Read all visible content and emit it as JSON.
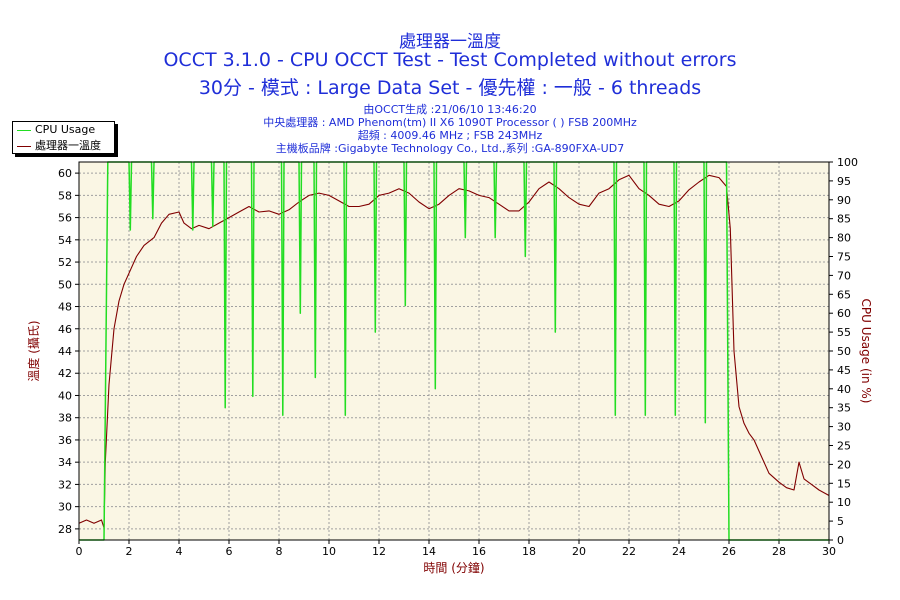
{
  "chart_title": "處理器一溫度",
  "test_line": "OCCT 3.1.0 - CPU OCCT Test - Test Completed without errors",
  "mode_line": "30分 - 模式 : Large Data Set - 優先權 : 一般 - 6 threads",
  "info": {
    "generated": "由OCCT生成 :21/06/10 13:46:20",
    "cpu": "中央處理器 : AMD Phenom(tm) II X6 1090T Processor (  ) FSB 200MHz",
    "clock": "超頻 : 4009.46 MHz ; FSB 243MHz",
    "board": "主機板品牌 :Gigabyte Technology Co., Ltd.,系列 :GA-890FXA-UD7"
  },
  "legend": {
    "cpu_usage": "CPU Usage",
    "temperature": "處理器一溫度"
  },
  "colors": {
    "title": "#1f2ed8",
    "cpu_usage": "#22dd22",
    "temperature": "#800000",
    "plot_background": "#faf6e4",
    "grid": "#a0a0a0"
  },
  "chart_data": {
    "type": "line",
    "title": "處理器一溫度",
    "xlabel": "時間 (分鐘)",
    "ylabel_left": "溫度 (攝氏)",
    "ylabel_right": "CPU Usage (in %)",
    "xlim": [
      0,
      30
    ],
    "ylim_left": [
      27,
      61
    ],
    "ylim_right": [
      0,
      100
    ],
    "x_ticks": [
      0,
      2,
      4,
      6,
      8,
      10,
      12,
      14,
      16,
      18,
      20,
      22,
      24,
      26,
      28,
      30
    ],
    "y_left_ticks": [
      28,
      30,
      32,
      34,
      36,
      38,
      40,
      42,
      44,
      46,
      48,
      50,
      52,
      54,
      56,
      58,
      60
    ],
    "y_right_ticks": [
      0,
      5,
      10,
      15,
      20,
      25,
      30,
      35,
      40,
      45,
      50,
      55,
      60,
      65,
      70,
      75,
      80,
      85,
      90,
      95,
      100
    ],
    "grid": true,
    "legend_position": "top-left",
    "series": [
      {
        "name": "處理器一溫度",
        "axis": "left",
        "x": [
          0,
          0.3,
          0.6,
          0.9,
          1.0,
          1.05,
          1.2,
          1.4,
          1.6,
          1.8,
          2.0,
          2.3,
          2.6,
          3.0,
          3.3,
          3.6,
          4.0,
          4.2,
          4.5,
          4.8,
          5.2,
          5.6,
          6.0,
          6.4,
          6.8,
          7.2,
          7.6,
          8.0,
          8.4,
          8.8,
          9.2,
          9.6,
          10.0,
          10.4,
          10.8,
          11.2,
          11.6,
          12.0,
          12.4,
          12.8,
          13.2,
          13.6,
          14.0,
          14.4,
          14.8,
          15.2,
          15.6,
          16.0,
          16.4,
          16.8,
          17.2,
          17.6,
          18.0,
          18.4,
          18.8,
          19.2,
          19.6,
          20.0,
          20.4,
          20.8,
          21.2,
          21.6,
          22.0,
          22.4,
          22.8,
          23.2,
          23.6,
          24.0,
          24.4,
          24.8,
          25.2,
          25.6,
          25.9,
          26.05,
          26.2,
          26.4,
          26.6,
          26.8,
          27.0,
          27.3,
          27.6,
          28.0,
          28.3,
          28.6,
          28.8,
          29.0,
          29.3,
          29.6,
          30.0
        ],
        "values": [
          28.5,
          28.8,
          28.5,
          28.8,
          28.1,
          34.0,
          41.0,
          46.0,
          48.5,
          50.0,
          51.0,
          52.5,
          53.5,
          54.2,
          55.5,
          56.3,
          56.5,
          55.5,
          55.0,
          55.3,
          55.0,
          55.5,
          56.0,
          56.5,
          57.0,
          56.5,
          56.6,
          56.3,
          56.7,
          57.4,
          58.0,
          58.2,
          58.0,
          57.5,
          57.0,
          57.0,
          57.2,
          58.0,
          58.2,
          58.6,
          58.2,
          57.4,
          56.8,
          57.2,
          58.0,
          58.6,
          58.4,
          58.0,
          57.8,
          57.2,
          56.6,
          56.6,
          57.4,
          58.6,
          59.2,
          58.6,
          57.8,
          57.2,
          57.0,
          58.2,
          58.6,
          59.4,
          59.8,
          58.6,
          58.0,
          57.2,
          57.0,
          57.5,
          58.5,
          59.2,
          59.8,
          59.6,
          58.8,
          55.0,
          44.0,
          39.0,
          37.5,
          36.6,
          36.0,
          34.5,
          33.0,
          32.2,
          31.7,
          31.5,
          34.0,
          32.5,
          32.0,
          31.5,
          31.0
        ]
      },
      {
        "name": "CPU Usage",
        "axis": "right",
        "x": [
          0,
          0.9,
          1.0,
          1.15,
          2.0,
          2.05,
          2.1,
          2.5,
          2.9,
          2.95,
          3.0,
          3.5,
          4.5,
          4.55,
          4.6,
          5.3,
          5.35,
          5.4,
          5.8,
          5.85,
          5.9,
          6.9,
          6.95,
          7.0,
          8.1,
          8.15,
          8.2,
          8.8,
          8.85,
          8.9,
          9.4,
          9.45,
          9.5,
          10.6,
          10.65,
          10.7,
          11.8,
          11.85,
          11.9,
          13.0,
          13.05,
          13.1,
          14.2,
          14.25,
          14.3,
          15.4,
          15.45,
          15.5,
          16.6,
          16.65,
          16.7,
          17.8,
          17.85,
          17.9,
          19.0,
          19.05,
          19.1,
          21.4,
          21.45,
          21.5,
          22.6,
          22.65,
          22.7,
          23.8,
          23.85,
          23.9,
          25.0,
          25.05,
          25.1,
          25.9,
          26.0,
          26.1,
          30.0
        ],
        "values": [
          0,
          0,
          0,
          100,
          100,
          82,
          100,
          100,
          100,
          85,
          100,
          100,
          100,
          82,
          100,
          100,
          83,
          100,
          100,
          35,
          100,
          100,
          38,
          100,
          100,
          33,
          100,
          100,
          60,
          100,
          100,
          43,
          100,
          100,
          33,
          100,
          100,
          55,
          100,
          100,
          62,
          100,
          100,
          40,
          100,
          100,
          80,
          100,
          100,
          80,
          100,
          100,
          75,
          100,
          100,
          55,
          100,
          100,
          33,
          100,
          100,
          33,
          100,
          100,
          33,
          100,
          100,
          31,
          100,
          100,
          0,
          0,
          0
        ]
      }
    ]
  }
}
